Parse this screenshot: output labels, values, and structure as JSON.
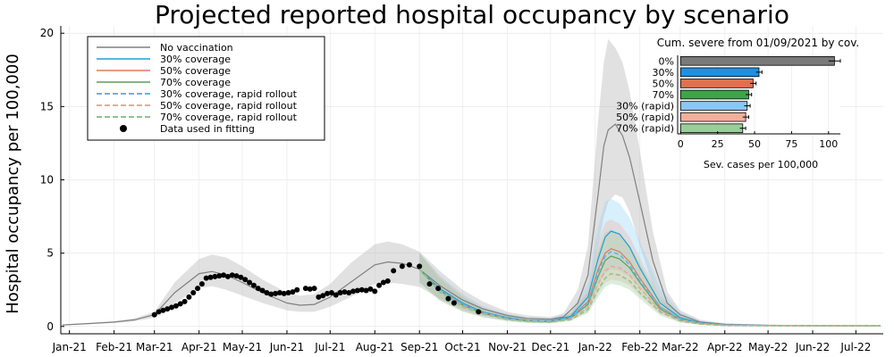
{
  "chart_data": [
    {
      "type": "line",
      "title": "Projected reported hospital occupancy by scenario",
      "ylabel": "Hospital occupancy per 100,000",
      "xlabel": "",
      "ylim": [
        -0.5,
        20.5
      ],
      "yticks": [
        0,
        5,
        10,
        15,
        20
      ],
      "xlim": [
        "2020-12-26",
        "2022-07-20"
      ],
      "x_tick_labels": [
        {
          "date": "2021-01-01",
          "label": "Jan-21"
        },
        {
          "date": "2021-02-01",
          "label": "Feb-21"
        },
        {
          "date": "2021-03-01",
          "label": "Mar-21"
        },
        {
          "date": "2021-04-01",
          "label": "Apr-21"
        },
        {
          "date": "2021-05-01",
          "label": "May-21"
        },
        {
          "date": "2021-06-01",
          "label": "Jun-21"
        },
        {
          "date": "2021-07-01",
          "label": "Jul-21"
        },
        {
          "date": "2021-08-01",
          "label": "Aug-21"
        },
        {
          "date": "2021-09-01",
          "label": "Sep-21"
        },
        {
          "date": "2021-10-01",
          "label": "Oct-21"
        },
        {
          "date": "2021-11-01",
          "label": "Nov-21"
        },
        {
          "date": "2021-12-01",
          "label": "Dec-21"
        },
        {
          "date": "2022-01-01",
          "label": "Jan-22"
        },
        {
          "date": "2022-02-01",
          "label": "Feb-22"
        },
        {
          "date": "2022-03-01",
          "label": "Mar-22"
        },
        {
          "date": "2022-04-01",
          "label": "Apr-22"
        },
        {
          "date": "2022-05-01",
          "label": "May-22"
        },
        {
          "date": "2022-06-01",
          "label": "Jun-22"
        },
        {
          "date": "2022-07-01",
          "label": "Jul-22"
        }
      ],
      "grid": true,
      "legend_position": "top-left",
      "legend": [
        {
          "label": "No vaccination",
          "color": "#808080",
          "style": "solid"
        },
        {
          "label": "30% coverage",
          "color": "#1f9fd8",
          "style": "solid"
        },
        {
          "label": "50% coverage",
          "color": "#e0775c",
          "style": "solid"
        },
        {
          "label": "70% coverage",
          "color": "#59a05a",
          "style": "solid"
        },
        {
          "label": "30% coverage, rapid rollout",
          "color": "#5cb8ef",
          "style": "dashed"
        },
        {
          "label": "50% coverage, rapid rollout",
          "color": "#efa793",
          "style": "dashed"
        },
        {
          "label": "70% coverage, rapid rollout",
          "color": "#8fc48f",
          "style": "dashed"
        },
        {
          "label": "Data used in fitting",
          "color": "#000000",
          "style": "marker"
        }
      ],
      "series": [
        {
          "name": "No vaccination",
          "color": "#808080",
          "x": [
            "2020-12-27",
            "2021-01-15",
            "2021-02-01",
            "2021-02-15",
            "2021-03-01",
            "2021-03-15",
            "2021-04-01",
            "2021-04-10",
            "2021-04-20",
            "2021-05-01",
            "2021-05-15",
            "2021-06-01",
            "2021-06-10",
            "2021-06-20",
            "2021-07-01",
            "2021-07-15",
            "2021-08-01",
            "2021-08-10",
            "2021-08-20",
            "2021-09-01",
            "2021-09-15",
            "2021-10-01",
            "2021-10-15",
            "2021-11-01",
            "2021-11-15",
            "2021-12-01",
            "2021-12-10",
            "2021-12-20",
            "2021-12-27",
            "2022-01-03",
            "2022-01-07",
            "2022-01-10",
            "2022-01-15",
            "2022-01-20",
            "2022-01-25",
            "2022-02-01",
            "2022-02-10",
            "2022-02-20",
            "2022-03-01",
            "2022-03-15",
            "2022-04-01",
            "2022-05-01",
            "2022-06-01",
            "2022-07-01",
            "2022-07-18"
          ],
          "y": [
            0.1,
            0.2,
            0.3,
            0.45,
            0.8,
            2.3,
            3.6,
            3.75,
            3.5,
            3.0,
            2.3,
            1.6,
            1.45,
            1.5,
            2.0,
            3.0,
            4.2,
            4.4,
            4.3,
            3.9,
            2.8,
            1.8,
            1.2,
            0.75,
            0.55,
            0.5,
            0.65,
            1.6,
            3.5,
            9.0,
            12.3,
            13.4,
            13.8,
            13.0,
            11.5,
            8.5,
            4.5,
            1.6,
            0.8,
            0.3,
            0.15,
            0.08,
            0.06,
            0.05,
            0.05
          ],
          "upper": [
            0.12,
            0.25,
            0.36,
            0.55,
            1.0,
            3.0,
            4.6,
            4.9,
            4.7,
            4.1,
            3.2,
            2.3,
            2.1,
            2.2,
            2.9,
            4.3,
            5.6,
            5.8,
            5.6,
            5.1,
            3.8,
            2.5,
            1.7,
            1.0,
            0.75,
            0.65,
            0.9,
            2.5,
            5.5,
            14.0,
            18.0,
            19.6,
            19.0,
            18.0,
            16.0,
            12.0,
            6.5,
            2.4,
            1.1,
            0.45,
            0.22,
            0.12,
            0.09,
            0.07,
            0.07
          ],
          "lower": [
            0.08,
            0.15,
            0.25,
            0.35,
            0.6,
            1.6,
            2.6,
            2.75,
            2.5,
            2.1,
            1.6,
            1.1,
            1.0,
            1.0,
            1.35,
            2.0,
            2.9,
            3.0,
            2.9,
            2.7,
            1.9,
            1.2,
            0.8,
            0.5,
            0.38,
            0.35,
            0.45,
            0.9,
            2.0,
            5.5,
            7.5,
            8.5,
            9.0,
            8.8,
            7.8,
            5.5,
            2.8,
            1.0,
            0.5,
            0.2,
            0.1,
            0.05,
            0.04,
            0.03,
            0.03
          ]
        },
        {
          "name": "30% coverage",
          "color": "#1f9fd8",
          "x": [
            "2021-09-01",
            "2021-09-15",
            "2021-10-01",
            "2021-10-15",
            "2021-11-01",
            "2021-11-15",
            "2021-12-01",
            "2021-12-15",
            "2021-12-27",
            "2022-01-03",
            "2022-01-08",
            "2022-01-12",
            "2022-01-18",
            "2022-01-25",
            "2022-02-01",
            "2022-02-15",
            "2022-03-01",
            "2022-03-15",
            "2022-04-01",
            "2022-05-01",
            "2022-06-01",
            "2022-07-01",
            "2022-07-18"
          ],
          "y": [
            3.9,
            2.6,
            1.6,
            1.0,
            0.6,
            0.42,
            0.38,
            0.7,
            2.0,
            4.6,
            6.1,
            6.5,
            6.3,
            5.4,
            4.0,
            1.6,
            0.6,
            0.25,
            0.12,
            0.07,
            0.05,
            0.05,
            0.05
          ],
          "upper": [
            5.0,
            3.5,
            2.2,
            1.4,
            0.85,
            0.6,
            0.55,
            1.0,
            3.0,
            6.8,
            8.5,
            8.7,
            8.4,
            7.4,
            5.8,
            2.6,
            1.0,
            0.4,
            0.2,
            0.1,
            0.08,
            0.07,
            0.07
          ],
          "lower": [
            3.0,
            1.9,
            1.1,
            0.7,
            0.4,
            0.28,
            0.25,
            0.45,
            1.2,
            2.8,
            3.6,
            3.9,
            3.8,
            3.4,
            2.6,
            1.0,
            0.35,
            0.15,
            0.07,
            0.04,
            0.03,
            0.03,
            0.03
          ]
        },
        {
          "name": "50% coverage",
          "color": "#e0775c",
          "x": [
            "2021-09-01",
            "2021-09-15",
            "2021-10-01",
            "2021-10-15",
            "2021-11-01",
            "2021-11-15",
            "2021-12-01",
            "2021-12-15",
            "2021-12-27",
            "2022-01-03",
            "2022-01-08",
            "2022-01-12",
            "2022-01-18",
            "2022-01-25",
            "2022-02-01",
            "2022-02-15",
            "2022-03-01",
            "2022-03-15",
            "2022-04-01",
            "2022-05-01",
            "2022-06-01",
            "2022-07-01",
            "2022-07-18"
          ],
          "y": [
            3.9,
            2.5,
            1.5,
            0.95,
            0.55,
            0.4,
            0.35,
            0.62,
            1.7,
            3.9,
            5.0,
            5.3,
            5.1,
            4.4,
            3.3,
            1.35,
            0.5,
            0.22,
            0.1,
            0.06,
            0.05,
            0.05,
            0.05
          ],
          "upper": [
            5.0,
            3.4,
            2.1,
            1.3,
            0.8,
            0.55,
            0.5,
            0.9,
            2.5,
            5.8,
            7.1,
            7.3,
            7.0,
            6.1,
            4.7,
            2.1,
            0.85,
            0.35,
            0.17,
            0.09,
            0.07,
            0.07,
            0.07
          ],
          "lower": [
            3.0,
            1.8,
            1.05,
            0.65,
            0.38,
            0.26,
            0.23,
            0.4,
            1.0,
            2.3,
            3.0,
            3.2,
            3.1,
            2.8,
            2.1,
            0.85,
            0.3,
            0.12,
            0.06,
            0.04,
            0.03,
            0.03,
            0.03
          ]
        },
        {
          "name": "70% coverage",
          "color": "#59a05a",
          "x": [
            "2021-09-01",
            "2021-09-15",
            "2021-10-01",
            "2021-10-15",
            "2021-11-01",
            "2021-11-15",
            "2021-12-01",
            "2021-12-15",
            "2021-12-27",
            "2022-01-03",
            "2022-01-08",
            "2022-01-12",
            "2022-01-18",
            "2022-01-25",
            "2022-02-01",
            "2022-02-15",
            "2022-03-01",
            "2022-03-15",
            "2022-04-01",
            "2022-05-01",
            "2022-06-01",
            "2022-07-01",
            "2022-07-18"
          ],
          "y": [
            3.9,
            2.45,
            1.45,
            0.9,
            0.52,
            0.38,
            0.33,
            0.58,
            1.5,
            3.4,
            4.5,
            4.8,
            4.6,
            4.0,
            3.0,
            1.2,
            0.45,
            0.2,
            0.09,
            0.06,
            0.05,
            0.05,
            0.05
          ],
          "upper": [
            5.0,
            3.3,
            2.0,
            1.25,
            0.75,
            0.52,
            0.47,
            0.85,
            2.3,
            5.2,
            6.4,
            6.6,
            6.3,
            5.5,
            4.3,
            1.9,
            0.8,
            0.32,
            0.15,
            0.08,
            0.07,
            0.07,
            0.07
          ],
          "lower": [
            3.0,
            1.75,
            1.0,
            0.62,
            0.35,
            0.25,
            0.22,
            0.38,
            0.9,
            2.0,
            2.7,
            2.9,
            2.8,
            2.5,
            1.9,
            0.75,
            0.27,
            0.11,
            0.05,
            0.04,
            0.03,
            0.03,
            0.03
          ]
        },
        {
          "name": "30% coverage, rapid rollout",
          "color": "#5cb8ef",
          "x": [
            "2021-09-01",
            "2021-09-15",
            "2021-10-01",
            "2021-10-15",
            "2021-11-01",
            "2021-11-15",
            "2021-12-01",
            "2021-12-15",
            "2021-12-27",
            "2022-01-03",
            "2022-01-08",
            "2022-01-12",
            "2022-01-18",
            "2022-01-25",
            "2022-02-01",
            "2022-02-15",
            "2022-03-01",
            "2022-03-15",
            "2022-04-01",
            "2022-05-01",
            "2022-06-01",
            "2022-07-01",
            "2022-07-18"
          ],
          "y": [
            3.9,
            2.5,
            1.5,
            0.95,
            0.55,
            0.4,
            0.35,
            0.6,
            1.6,
            3.7,
            4.8,
            5.1,
            4.9,
            4.2,
            3.1,
            1.3,
            0.5,
            0.22,
            0.1,
            0.06,
            0.05,
            0.05,
            0.05
          ]
        },
        {
          "name": "50% coverage, rapid rollout",
          "color": "#efa793",
          "x": [
            "2021-09-01",
            "2021-09-15",
            "2021-10-01",
            "2021-10-15",
            "2021-11-01",
            "2021-11-15",
            "2021-12-01",
            "2021-12-15",
            "2021-12-27",
            "2022-01-03",
            "2022-01-08",
            "2022-01-12",
            "2022-01-18",
            "2022-01-25",
            "2022-02-01",
            "2022-02-15",
            "2022-03-01",
            "2022-03-15",
            "2022-04-01",
            "2022-05-01",
            "2022-06-01",
            "2022-07-01",
            "2022-07-18"
          ],
          "y": [
            3.9,
            2.4,
            1.4,
            0.88,
            0.5,
            0.36,
            0.31,
            0.5,
            1.3,
            2.9,
            3.8,
            4.1,
            4.0,
            3.5,
            2.6,
            1.1,
            0.42,
            0.18,
            0.08,
            0.05,
            0.05,
            0.05,
            0.05
          ]
        },
        {
          "name": "70% coverage, rapid rollout",
          "color": "#8fc48f",
          "x": [
            "2021-09-01",
            "2021-09-15",
            "2021-10-01",
            "2021-10-15",
            "2021-11-01",
            "2021-11-15",
            "2021-12-01",
            "2021-12-15",
            "2021-12-27",
            "2022-01-03",
            "2022-01-08",
            "2022-01-12",
            "2022-01-18",
            "2022-01-25",
            "2022-02-01",
            "2022-02-15",
            "2022-03-01",
            "2022-03-15",
            "2022-04-01",
            "2022-05-01",
            "2022-06-01",
            "2022-07-01",
            "2022-07-18"
          ],
          "y": [
            3.9,
            2.35,
            1.35,
            0.85,
            0.48,
            0.34,
            0.3,
            0.46,
            1.15,
            2.5,
            3.3,
            3.6,
            3.5,
            3.1,
            2.3,
            1.0,
            0.38,
            0.16,
            0.07,
            0.05,
            0.04,
            0.04,
            0.04
          ]
        }
      ],
      "points": {
        "name": "Data used in fitting",
        "color": "#000000",
        "x": [
          "2021-03-01",
          "2021-03-04",
          "2021-03-07",
          "2021-03-10",
          "2021-03-13",
          "2021-03-16",
          "2021-03-19",
          "2021-03-22",
          "2021-03-25",
          "2021-03-28",
          "2021-03-31",
          "2021-04-03",
          "2021-04-06",
          "2021-04-09",
          "2021-04-12",
          "2021-04-15",
          "2021-04-18",
          "2021-04-21",
          "2021-04-24",
          "2021-04-27",
          "2021-04-30",
          "2021-05-03",
          "2021-05-06",
          "2021-05-09",
          "2021-05-12",
          "2021-05-15",
          "2021-05-18",
          "2021-05-21",
          "2021-05-24",
          "2021-05-27",
          "2021-05-30",
          "2021-06-02",
          "2021-06-05",
          "2021-06-08",
          "2021-06-14",
          "2021-06-17",
          "2021-06-20",
          "2021-06-23",
          "2021-06-26",
          "2021-06-29",
          "2021-07-02",
          "2021-07-05",
          "2021-07-08",
          "2021-07-11",
          "2021-07-14",
          "2021-07-17",
          "2021-07-20",
          "2021-07-23",
          "2021-07-26",
          "2021-07-29",
          "2021-08-01",
          "2021-08-04",
          "2021-08-07",
          "2021-08-10",
          "2021-08-14",
          "2021-08-20",
          "2021-08-25",
          "2021-09-01",
          "2021-09-08",
          "2021-09-14",
          "2021-09-21",
          "2021-09-25",
          "2021-10-12"
        ],
        "y": [
          0.8,
          1.0,
          1.1,
          1.2,
          1.3,
          1.4,
          1.55,
          1.7,
          2.0,
          2.3,
          2.6,
          2.9,
          3.3,
          3.35,
          3.4,
          3.45,
          3.5,
          3.4,
          3.5,
          3.45,
          3.35,
          3.2,
          3.0,
          2.8,
          2.6,
          2.45,
          2.3,
          2.2,
          2.25,
          2.3,
          2.25,
          2.3,
          2.35,
          2.5,
          2.6,
          2.55,
          2.6,
          2.0,
          2.1,
          2.25,
          2.3,
          2.15,
          2.3,
          2.35,
          2.3,
          2.4,
          2.45,
          2.5,
          2.45,
          2.55,
          2.4,
          2.8,
          3.0,
          3.1,
          3.8,
          4.1,
          4.2,
          4.1,
          2.9,
          2.6,
          1.9,
          1.6,
          1.0
        ]
      }
    },
    {
      "type": "bar",
      "orientation": "horizontal",
      "title": "Cum. severe from 01/09/2021 by cov.",
      "xlabel": "Sev. cases per 100,000",
      "xlim": [
        -2,
        108
      ],
      "xticks": [
        0,
        25,
        50,
        75,
        100
      ],
      "categories": [
        "0%",
        "30%",
        "50%",
        "70%",
        "30% (rapid)",
        "50% (rapid)",
        "70% (rapid)"
      ],
      "values": [
        104,
        53,
        49,
        46,
        45,
        44,
        42
      ],
      "errors": [
        4,
        2,
        2,
        2,
        2,
        2,
        2
      ],
      "colors": [
        "#7a7a7a",
        "#1f8fe0",
        "#e0704f",
        "#3fa34a",
        "#8cc6f2",
        "#f2b09c",
        "#98cf98"
      ]
    }
  ]
}
